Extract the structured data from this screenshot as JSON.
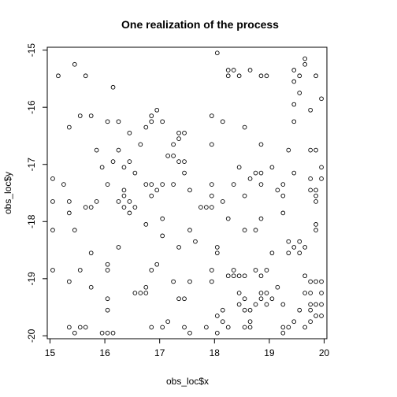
{
  "chart_data": {
    "type": "scatter",
    "title": "One realization of the process",
    "xlabel": "obs_loc$x",
    "ylabel": "obs_loc$y",
    "xlim": [
      14.95,
      20.05
    ],
    "ylim": [
      -20.05,
      -14.95
    ],
    "x_ticks": [
      15,
      16,
      17,
      18,
      19,
      20
    ],
    "x_tick_labels": [
      "15",
      "16",
      "17",
      "18",
      "19",
      "20"
    ],
    "y_ticks": [
      -15,
      -16,
      -17,
      -18,
      -19,
      -20
    ],
    "y_tick_labels": [
      "-15",
      "-16",
      "-17",
      "-18",
      "-19",
      "-20"
    ],
    "grid": false,
    "marker": "open-circle",
    "points": [
      [
        15.15,
        -15.45
      ],
      [
        15.45,
        -15.25
      ],
      [
        15.65,
        -15.45
      ],
      [
        15.55,
        -16.15
      ],
      [
        15.35,
        -16.35
      ],
      [
        15.75,
        -16.15
      ],
      [
        16.15,
        -15.65
      ],
      [
        15.05,
        -17.25
      ],
      [
        15.05,
        -17.65
      ],
      [
        15.05,
        -18.15
      ],
      [
        15.25,
        -17.35
      ],
      [
        15.35,
        -17.65
      ],
      [
        15.35,
        -17.85
      ],
      [
        15.45,
        -18.15
      ],
      [
        15.65,
        -17.75
      ],
      [
        15.75,
        -17.75
      ],
      [
        15.85,
        -17.65
      ],
      [
        15.85,
        -16.75
      ],
      [
        15.95,
        -17.05
      ],
      [
        16.05,
        -17.35
      ],
      [
        16.15,
        -16.95
      ],
      [
        16.25,
        -16.75
      ],
      [
        16.25,
        -16.25
      ],
      [
        16.35,
        -17.05
      ],
      [
        16.05,
        -16.25
      ],
      [
        16.45,
        -16.45
      ],
      [
        15.75,
        -18.55
      ],
      [
        15.05,
        -18.85
      ],
      [
        15.35,
        -19.05
      ],
      [
        15.55,
        -18.85
      ],
      [
        15.75,
        -19.15
      ],
      [
        16.05,
        -18.75
      ],
      [
        16.25,
        -18.45
      ],
      [
        15.35,
        -19.85
      ],
      [
        15.45,
        -19.95
      ],
      [
        15.55,
        -19.85
      ],
      [
        15.65,
        -19.85
      ],
      [
        15.95,
        -19.95
      ],
      [
        16.05,
        -19.95
      ],
      [
        16.15,
        -19.95
      ],
      [
        16.05,
        -19.55
      ],
      [
        16.05,
        -19.35
      ],
      [
        16.25,
        -17.65
      ],
      [
        16.35,
        -17.45
      ],
      [
        16.35,
        -17.55
      ],
      [
        16.35,
        -17.75
      ],
      [
        16.45,
        -17.85
      ],
      [
        16.45,
        -17.65
      ],
      [
        16.55,
        -17.15
      ],
      [
        16.55,
        -17.75
      ],
      [
        16.45,
        -16.95
      ],
      [
        16.65,
        -16.65
      ],
      [
        16.75,
        -16.35
      ],
      [
        16.85,
        -16.25
      ],
      [
        16.95,
        -16.05
      ],
      [
        16.85,
        -16.15
      ],
      [
        17.05,
        -16.25
      ],
      [
        17.15,
        -16.85
      ],
      [
        16.75,
        -17.35
      ],
      [
        16.85,
        -17.55
      ],
      [
        16.85,
        -17.35
      ],
      [
        16.95,
        -17.45
      ],
      [
        17.05,
        -17.35
      ],
      [
        17.05,
        -17.95
      ],
      [
        16.75,
        -18.05
      ],
      [
        17.25,
        -16.85
      ],
      [
        17.25,
        -16.65
      ],
      [
        17.35,
        -16.55
      ],
      [
        17.35,
        -16.45
      ],
      [
        17.45,
        -16.45
      ],
      [
        17.45,
        -16.95
      ],
      [
        17.35,
        -16.95
      ],
      [
        17.45,
        -17.15
      ],
      [
        17.25,
        -17.35
      ],
      [
        17.55,
        -17.45
      ],
      [
        17.85,
        -17.75
      ],
      [
        17.95,
        -17.75
      ],
      [
        17.95,
        -17.55
      ],
      [
        17.95,
        -17.35
      ],
      [
        17.75,
        -17.75
      ],
      [
        17.65,
        -18.35
      ],
      [
        17.55,
        -18.15
      ],
      [
        17.35,
        -18.45
      ],
      [
        17.25,
        -19.05
      ],
      [
        17.35,
        -19.35
      ],
      [
        16.85,
        -18.85
      ],
      [
        16.95,
        -18.75
      ],
      [
        16.75,
        -19.15
      ],
      [
        16.65,
        -19.25
      ],
      [
        16.75,
        -19.25
      ],
      [
        16.85,
        -19.85
      ],
      [
        17.05,
        -19.85
      ],
      [
        17.15,
        -19.75
      ],
      [
        17.45,
        -19.85
      ],
      [
        17.55,
        -19.95
      ],
      [
        17.55,
        -19.05
      ],
      [
        17.85,
        -19.85
      ],
      [
        17.95,
        -19.05
      ],
      [
        18.05,
        -18.45
      ],
      [
        18.05,
        -18.55
      ],
      [
        17.95,
        -18.85
      ],
      [
        18.05,
        -19.65
      ],
      [
        18.05,
        -19.95
      ],
      [
        18.15,
        -19.75
      ],
      [
        18.15,
        -19.55
      ],
      [
        18.25,
        -19.85
      ],
      [
        18.25,
        -18.95
      ],
      [
        18.35,
        -18.95
      ],
      [
        18.35,
        -18.85
      ],
      [
        18.45,
        -18.95
      ],
      [
        18.45,
        -19.25
      ],
      [
        18.55,
        -18.95
      ],
      [
        18.55,
        -19.35
      ],
      [
        18.45,
        -19.45
      ],
      [
        18.55,
        -19.55
      ],
      [
        18.55,
        -19.85
      ],
      [
        18.65,
        -19.85
      ],
      [
        18.65,
        -19.75
      ],
      [
        18.65,
        -19.55
      ],
      [
        18.75,
        -19.45
      ],
      [
        18.85,
        -19.35
      ],
      [
        18.75,
        -18.85
      ],
      [
        18.85,
        -18.95
      ],
      [
        18.95,
        -18.85
      ],
      [
        18.95,
        -19.25
      ],
      [
        18.95,
        -19.45
      ],
      [
        19.05,
        -19.35
      ],
      [
        19.15,
        -19.15
      ],
      [
        19.25,
        -19.45
      ],
      [
        19.25,
        -19.85
      ],
      [
        19.25,
        -19.95
      ],
      [
        19.35,
        -19.85
      ],
      [
        19.45,
        -19.75
      ],
      [
        19.55,
        -19.55
      ],
      [
        19.65,
        -19.85
      ],
      [
        19.75,
        -19.55
      ],
      [
        19.75,
        -19.75
      ],
      [
        19.75,
        -19.45
      ],
      [
        19.85,
        -19.45
      ],
      [
        19.85,
        -19.65
      ],
      [
        19.95,
        -19.45
      ],
      [
        19.95,
        -19.65
      ],
      [
        19.75,
        -19.25
      ],
      [
        19.95,
        -19.25
      ],
      [
        19.65,
        -19.25
      ],
      [
        19.75,
        -19.05
      ],
      [
        19.85,
        -19.05
      ],
      [
        19.95,
        -19.05
      ],
      [
        19.05,
        -18.55
      ],
      [
        19.35,
        -18.35
      ],
      [
        19.45,
        -18.45
      ],
      [
        19.55,
        -18.35
      ],
      [
        19.55,
        -18.55
      ],
      [
        19.65,
        -18.45
      ],
      [
        19.35,
        -18.55
      ],
      [
        19.85,
        -18.05
      ],
      [
        19.85,
        -18.15
      ],
      [
        19.65,
        -18.95
      ],
      [
        19.75,
        -17.45
      ],
      [
        19.85,
        -17.55
      ],
      [
        19.85,
        -17.45
      ],
      [
        19.85,
        -17.65
      ],
      [
        19.95,
        -17.25
      ],
      [
        19.95,
        -17.05
      ],
      [
        19.85,
        -16.75
      ],
      [
        19.75,
        -16.75
      ],
      [
        19.75,
        -17.25
      ],
      [
        19.45,
        -17.15
      ],
      [
        19.35,
        -16.75
      ],
      [
        19.25,
        -17.35
      ],
      [
        19.05,
        -17.05
      ],
      [
        19.15,
        -17.45
      ],
      [
        19.25,
        -17.55
      ],
      [
        19.25,
        -17.85
      ],
      [
        18.85,
        -17.35
      ],
      [
        18.65,
        -17.25
      ],
      [
        18.75,
        -17.15
      ],
      [
        18.85,
        -17.15
      ],
      [
        18.45,
        -17.05
      ],
      [
        18.55,
        -17.55
      ],
      [
        18.85,
        -17.95
      ],
      [
        18.75,
        -18.15
      ],
      [
        18.55,
        -18.15
      ],
      [
        18.25,
        -17.95
      ],
      [
        18.15,
        -17.65
      ],
      [
        18.35,
        -17.35
      ],
      [
        18.85,
        -16.65
      ],
      [
        18.55,
        -16.35
      ],
      [
        18.15,
        -16.25
      ],
      [
        17.95,
        -16.15
      ],
      [
        17.95,
        -16.65
      ],
      [
        18.05,
        -15.05
      ],
      [
        18.25,
        -15.45
      ],
      [
        18.25,
        -15.35
      ],
      [
        18.35,
        -15.35
      ],
      [
        18.45,
        -15.45
      ],
      [
        18.65,
        -15.35
      ],
      [
        18.85,
        -15.45
      ],
      [
        18.95,
        -15.45
      ],
      [
        19.45,
        -15.35
      ],
      [
        19.45,
        -15.55
      ],
      [
        19.55,
        -15.45
      ],
      [
        19.65,
        -15.25
      ],
      [
        19.65,
        -15.15
      ],
      [
        19.85,
        -15.45
      ],
      [
        19.95,
        -15.85
      ],
      [
        19.55,
        -15.75
      ],
      [
        19.45,
        -15.95
      ],
      [
        19.45,
        -16.25
      ],
      [
        19.75,
        -16.05
      ],
      [
        17.45,
        -19.35
      ],
      [
        16.55,
        -19.25
      ],
      [
        18.85,
        -19.25
      ],
      [
        17.05,
        -18.25
      ],
      [
        16.05,
        -18.85
      ]
    ]
  }
}
